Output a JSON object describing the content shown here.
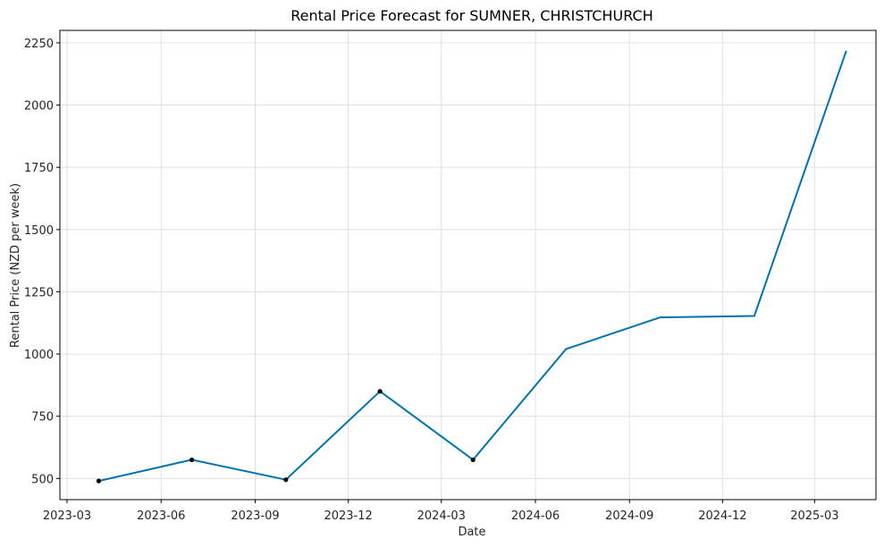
{
  "chart_data": {
    "type": "line",
    "title": "Rental Price Forecast for SUMNER, CHRISTCHURCH",
    "xlabel": "Date",
    "ylabel": "Rental Price (NZD per week)",
    "x_ticks": [
      "2023-03",
      "2023-06",
      "2023-09",
      "2023-12",
      "2024-03",
      "2024-06",
      "2024-09",
      "2024-12",
      "2025-03"
    ],
    "y_ticks": [
      500,
      750,
      1000,
      1250,
      1500,
      1750,
      2000,
      2250
    ],
    "xlim": [
      "2023-02-22",
      "2025-04-30"
    ],
    "ylim": [
      415,
      2300
    ],
    "grid": true,
    "colors": {
      "line": "#0072b2",
      "observed": "#000000",
      "grid": "#e0e0e0"
    },
    "series": [
      {
        "values": [
          {
            "x": "2023-04-01",
            "y": 490
          },
          {
            "x": "2023-07-01",
            "y": 575
          },
          {
            "x": "2023-10-01",
            "y": 495
          },
          {
            "x": "2024-01-01",
            "y": 850
          },
          {
            "x": "2024-04-01",
            "y": 575
          },
          {
            "x": "2024-07-01",
            "y": 1020
          },
          {
            "x": "2024-10-01",
            "y": 1147
          },
          {
            "x": "2025-01-01",
            "y": 1153
          },
          {
            "x": "2025-04-01",
            "y": 2218
          }
        ]
      }
    ],
    "observed_points": [
      {
        "x": "2023-04-01",
        "y": 490
      },
      {
        "x": "2023-07-01",
        "y": 575
      },
      {
        "x": "2023-10-01",
        "y": 495
      },
      {
        "x": "2024-01-01",
        "y": 850
      },
      {
        "x": "2024-04-01",
        "y": 575
      }
    ]
  }
}
